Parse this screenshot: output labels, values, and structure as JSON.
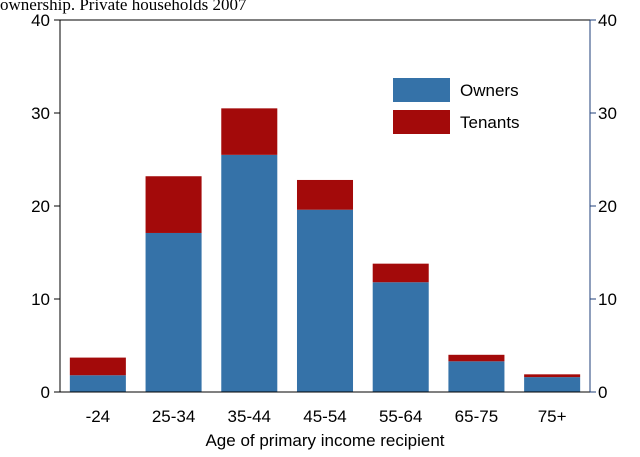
{
  "chart_data": {
    "type": "stacked-bar",
    "title": "ownership. Private households 2007",
    "x_label": "Age of primary income recipient",
    "categories": [
      "-24",
      "25-34",
      "35-44",
      "45-54",
      "55-64",
      "65-75",
      "75+"
    ],
    "series": [
      {
        "name": "Owners",
        "color": "#3572a8",
        "values": [
          1.8,
          17.1,
          25.5,
          19.6,
          11.8,
          3.3,
          1.6
        ]
      },
      {
        "name": "Tenants",
        "color": "#a30a0a",
        "values": [
          1.9,
          6.1,
          5.0,
          3.2,
          2.0,
          0.7,
          0.3
        ]
      }
    ],
    "ylim": [
      0,
      40
    ],
    "yticks": [
      0,
      10,
      20,
      30,
      40
    ],
    "legend": "upper-right"
  }
}
